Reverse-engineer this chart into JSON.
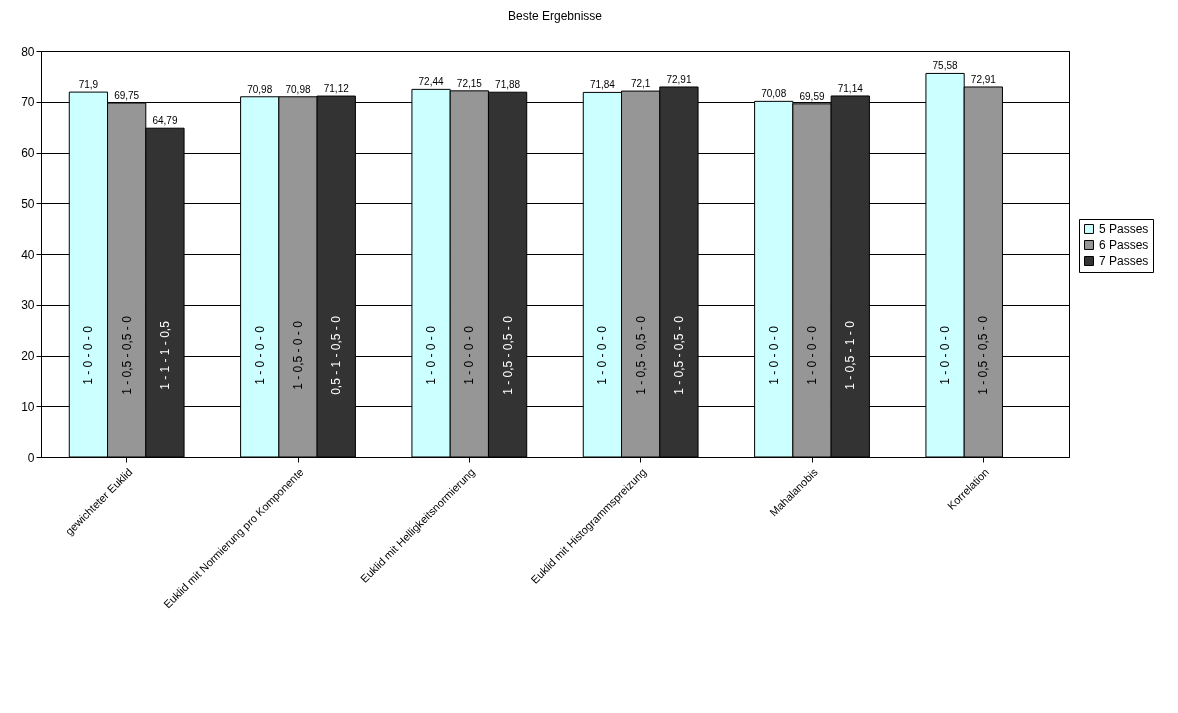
{
  "chart_data": {
    "type": "bar",
    "title": "Beste Ergebnisse",
    "categories": [
      "gewichteter Euklid",
      "Euklid mit Normierung pro Komponente",
      "Euklid mit Helligkeitsnormierung",
      "Euklid mit Histogrammspreizung",
      "Mahalanobis",
      "Korrelation"
    ],
    "series": [
      {
        "name": "5 Passes",
        "color": "#ccffff",
        "values": [
          71.9,
          70.98,
          72.44,
          71.84,
          70.08,
          75.58
        ],
        "value_labels": [
          "71,9",
          "70,98",
          "72,44",
          "71,84",
          "70,08",
          "75,58"
        ]
      },
      {
        "name": "6 Passes",
        "color": "#969696",
        "values": [
          69.75,
          70.98,
          72.15,
          72.1,
          69.59,
          72.91
        ],
        "value_labels": [
          "69,75",
          "70,98",
          "72,15",
          "72,1",
          "69,59",
          "72,91"
        ]
      },
      {
        "name": "7 Passes",
        "color": "#333333",
        "values": [
          64.79,
          71.12,
          71.88,
          72.91,
          71.14,
          null
        ],
        "value_labels": [
          "64,79",
          "71,12",
          "71,88",
          "72,91",
          "71,14",
          null
        ]
      }
    ],
    "ylim": [
      0,
      80
    ],
    "yticks": [
      0,
      10,
      20,
      30,
      40,
      50,
      60,
      70,
      80
    ],
    "grid": "y",
    "legend": "right",
    "annotations": [
      "1 - 0 - 0 - 0",
      "1 - 0,5 - 0,5 - 0",
      "1 - 1 - 1 - 0,5",
      "1 - 0 - 0 - 0",
      "1 - 0,5 - 0 - 0",
      "0,5 - 1 - 0,5 - 0",
      "1 - 0 - 0 - 0",
      "1 - 0 - 0 - 0",
      "1 - 0,5 - 0,5 - 0",
      "1 - 0 - 0 - 0",
      "1 - 0,5 - 0,5 - 0",
      "1 - 0,5 - 0,5 - 0",
      "1 - 0 - 0 - 0",
      "1 - 0 - 0 - 0",
      "1 - 0,5 - 1 - 0",
      "1 - 0 - 0 - 0",
      "1 - 0,5 - 0,5 - 0"
    ]
  }
}
